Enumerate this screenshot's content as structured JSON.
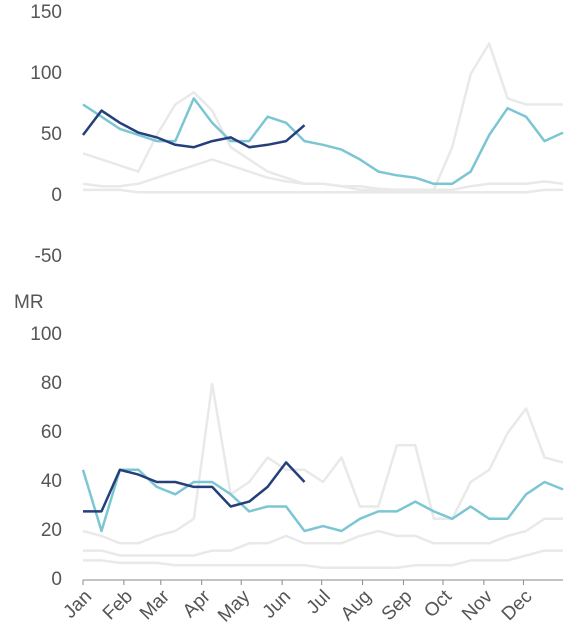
{
  "chart_data": [
    {
      "type": "line",
      "x": [
        1,
        15,
        29,
        43,
        57,
        71,
        85,
        99,
        113,
        127,
        141,
        155,
        169,
        183,
        197,
        211,
        225,
        239,
        253,
        267,
        281,
        295,
        309,
        323,
        337,
        351,
        365
      ],
      "xlim": [
        1,
        365
      ],
      "ylim": [
        -50,
        150
      ],
      "yticks": [
        -50,
        0,
        50,
        100,
        150
      ],
      "series": [
        {
          "color": "#e9e9e9",
          "values": [
            35,
            30,
            25,
            20,
            50,
            75,
            85,
            70,
            40,
            30,
            20,
            15,
            10,
            10,
            8,
            5,
            5,
            5,
            5,
            5,
            40,
            100,
            125,
            80,
            75,
            75,
            75
          ]
        },
        {
          "color": "#e9e9e9",
          "values": [
            10,
            8,
            8,
            10,
            15,
            20,
            25,
            30,
            25,
            20,
            15,
            12,
            10,
            10,
            8,
            8,
            6,
            5,
            5,
            5,
            5,
            8,
            10,
            10,
            10,
            12,
            10
          ]
        },
        {
          "color": "#e9e9e9",
          "values": [
            5,
            5,
            5,
            3,
            3,
            3,
            3,
            3,
            3,
            3,
            3,
            3,
            3,
            3,
            3,
            3,
            3,
            3,
            3,
            3,
            3,
            3,
            3,
            3,
            3,
            5,
            5
          ]
        },
        {
          "color": "#7cc6d3",
          "values": [
            75,
            65,
            55,
            50,
            45,
            45,
            80,
            60,
            45,
            45,
            65,
            60,
            45,
            42,
            38,
            30,
            20,
            17,
            15,
            10,
            10,
            20,
            50,
            72,
            65,
            45,
            52
          ]
        },
        {
          "color": "#243f7a",
          "values": [
            50,
            70,
            60,
            52,
            48,
            42,
            40,
            45,
            48,
            40,
            42,
            45,
            58,
            null,
            null,
            null,
            null,
            null,
            null,
            null,
            null,
            null,
            null,
            null,
            null,
            null,
            null
          ]
        }
      ]
    },
    {
      "type": "line",
      "y_label": "MR",
      "x": [
        1,
        15,
        29,
        43,
        57,
        71,
        85,
        99,
        113,
        127,
        141,
        155,
        169,
        183,
        197,
        211,
        225,
        239,
        253,
        267,
        281,
        295,
        309,
        323,
        337,
        351,
        365
      ],
      "xlim": [
        1,
        365
      ],
      "xticks": [
        {
          "value": 1,
          "label": "Jan"
        },
        {
          "value": 32,
          "label": "Feb"
        },
        {
          "value": 60,
          "label": "Mar"
        },
        {
          "value": 91,
          "label": "Apr"
        },
        {
          "value": 121,
          "label": "May"
        },
        {
          "value": 152,
          "label": "Jun"
        },
        {
          "value": 182,
          "label": "Jul"
        },
        {
          "value": 213,
          "label": "Aug"
        },
        {
          "value": 244,
          "label": "Sep"
        },
        {
          "value": 274,
          "label": "Oct"
        },
        {
          "value": 305,
          "label": "Nov"
        },
        {
          "value": 335,
          "label": "Dec"
        }
      ],
      "ylim": [
        0,
        100
      ],
      "yticks": [
        0,
        20,
        40,
        60,
        80,
        100
      ],
      "series": [
        {
          "color": "#e9e9e9",
          "values": [
            20,
            18,
            15,
            15,
            18,
            20,
            25,
            80,
            35,
            40,
            50,
            45,
            45,
            40,
            50,
            30,
            30,
            55,
            55,
            25,
            25,
            40,
            45,
            60,
            70,
            50,
            48
          ]
        },
        {
          "color": "#e9e9e9",
          "values": [
            12,
            12,
            10,
            10,
            10,
            10,
            10,
            12,
            12,
            15,
            15,
            18,
            15,
            15,
            15,
            18,
            20,
            18,
            18,
            15,
            15,
            15,
            15,
            18,
            20,
            25,
            25
          ]
        },
        {
          "color": "#e9e9e9",
          "values": [
            8,
            8,
            7,
            7,
            7,
            6,
            6,
            6,
            6,
            6,
            6,
            6,
            6,
            5,
            5,
            5,
            5,
            5,
            6,
            6,
            6,
            8,
            8,
            8,
            10,
            12,
            12
          ]
        },
        {
          "color": "#7cc6d3",
          "values": [
            45,
            20,
            45,
            45,
            38,
            35,
            40,
            40,
            35,
            28,
            30,
            30,
            20,
            22,
            20,
            25,
            28,
            28,
            32,
            28,
            25,
            30,
            25,
            25,
            35,
            40,
            37
          ]
        },
        {
          "color": "#243f7a",
          "values": [
            28,
            28,
            45,
            43,
            40,
            40,
            38,
            38,
            30,
            32,
            38,
            48,
            40,
            null,
            null,
            null,
            null,
            null,
            null,
            null,
            null,
            null,
            null,
            null,
            null,
            null,
            null
          ]
        }
      ]
    }
  ]
}
